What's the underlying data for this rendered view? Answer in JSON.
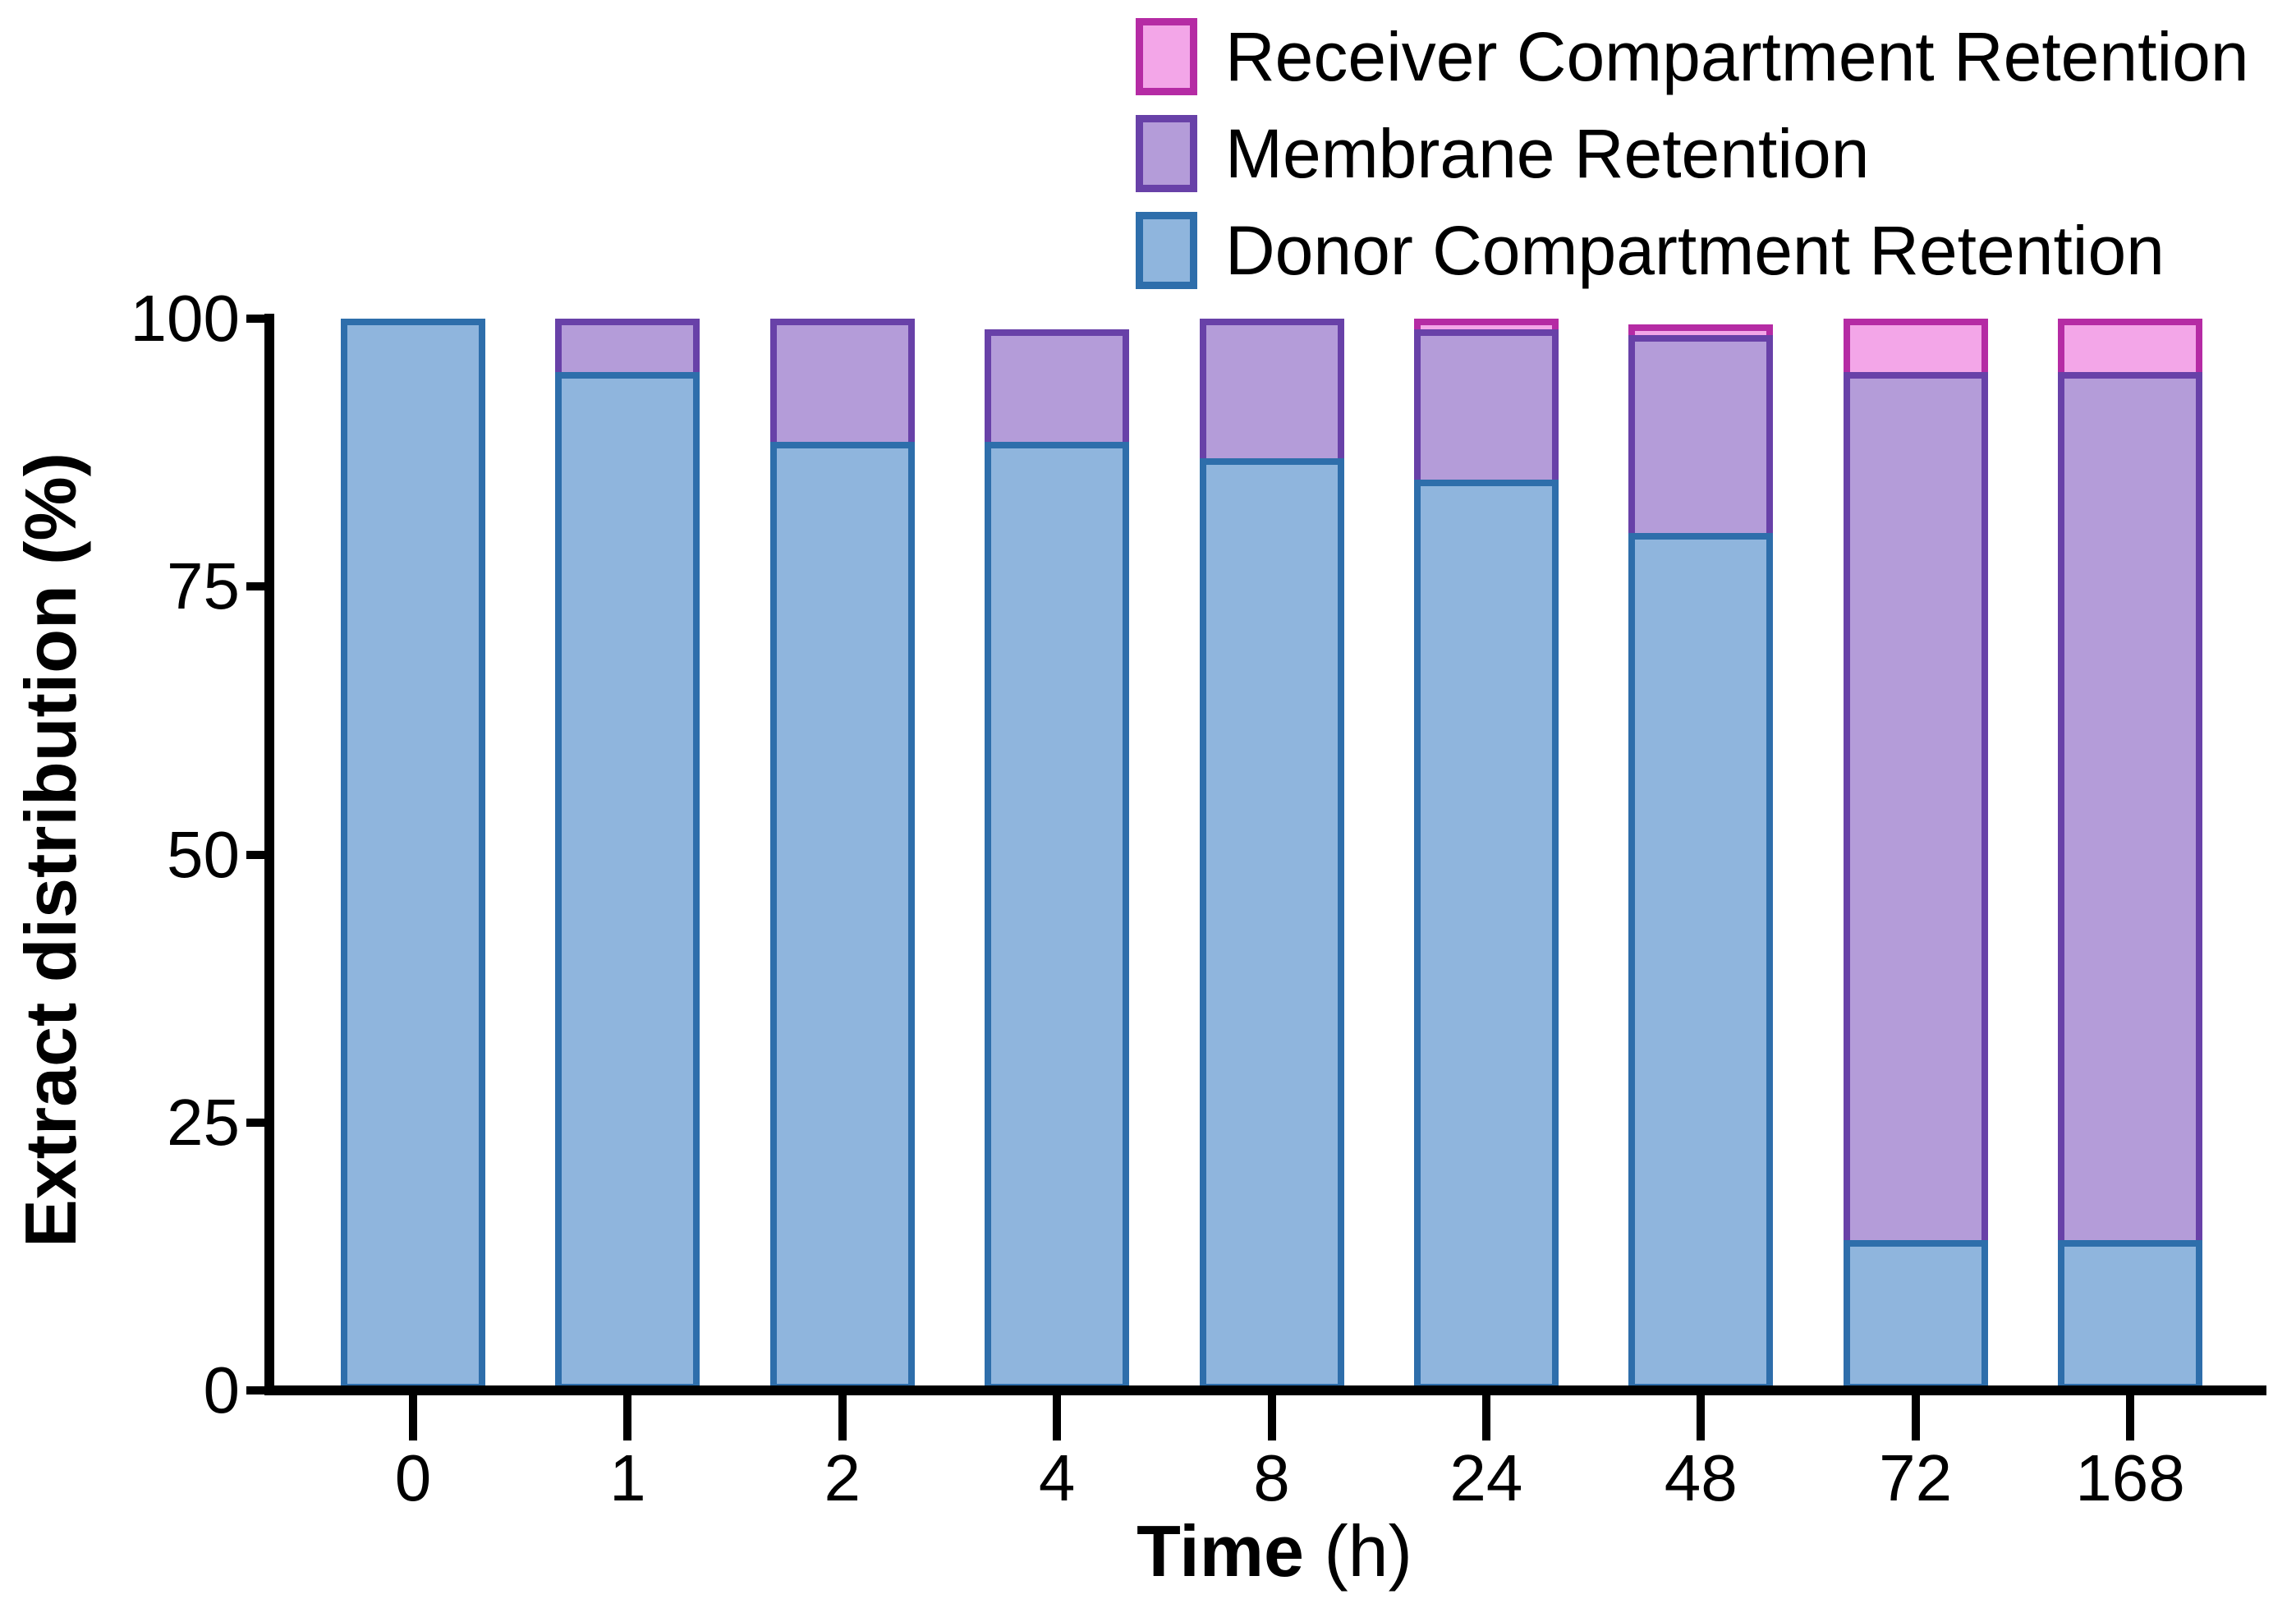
{
  "figure": {
    "background": "#FFFFFF",
    "ylabel": "Extract distribution (%)",
    "xlabel_main": "Time",
    "xlabel_unit": "(h)"
  },
  "chart_data": {
    "type": "bar",
    "stacked": true,
    "title": "",
    "xlabel": "Time (h)",
    "ylabel": "Extract distribution (%)",
    "ylim": [
      0,
      100
    ],
    "yticks": [
      "0",
      "25",
      "50",
      "75",
      "100"
    ],
    "ytick_values": [
      0,
      25,
      50,
      75,
      100
    ],
    "grid": false,
    "legend_position": "top-right",
    "categories": [
      "0",
      "1",
      "2",
      "4",
      "8",
      "24",
      "48",
      "72",
      "168"
    ],
    "series": [
      {
        "name": "Donor Compartment Retention",
        "fill": "#8FB5DD",
        "border": "#2E6EAB",
        "values": [
          100,
          95,
          88.5,
          88.5,
          87,
          85,
          80,
          14,
          14
        ]
      },
      {
        "name": "Membrane Retention",
        "fill": "#B49CD9",
        "border": "#6841A8",
        "values": [
          0,
          5,
          11.5,
          10.5,
          13,
          14,
          18.5,
          81,
          81
        ]
      },
      {
        "name": "Receiver Compartment Retention",
        "fill": "#F3A6E8",
        "border": "#B52BA4",
        "values": [
          0,
          0,
          0,
          0,
          0,
          1,
          1,
          5,
          5
        ]
      }
    ],
    "legend_order": [
      "Receiver Compartment Retention",
      "Membrane Retention",
      "Donor Compartment Retention"
    ]
  }
}
